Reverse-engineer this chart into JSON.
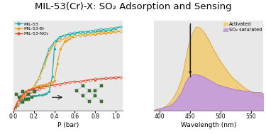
{
  "title": "MIL-53(Cr)-X: SO₂ Adsorption and Sensing",
  "title_fontsize": 9.5,
  "left_xlabel": "P (bar)",
  "right_xlabel": "Wavelength (nm)",
  "bg_color": "#eeeeee",
  "panel_bg": "#e8e8e8",
  "series": [
    {
      "label": "MIL-53",
      "color": "#1eada6",
      "adsorption_x": [
        0.0,
        0.02,
        0.04,
        0.06,
        0.08,
        0.1,
        0.12,
        0.15,
        0.18,
        0.2,
        0.22,
        0.25,
        0.28,
        0.3,
        0.32,
        0.35,
        0.38,
        0.4,
        0.42,
        0.45,
        0.5,
        0.55,
        0.6,
        0.65,
        0.7,
        0.75,
        0.8,
        0.85,
        0.9,
        0.95,
        1.0,
        1.05
      ],
      "adsorption_y": [
        0.0,
        0.03,
        0.06,
        0.09,
        0.11,
        0.13,
        0.14,
        0.15,
        0.16,
        0.17,
        0.17,
        0.18,
        0.18,
        0.19,
        0.2,
        0.22,
        0.4,
        0.72,
        0.82,
        0.86,
        0.88,
        0.89,
        0.9,
        0.91,
        0.91,
        0.92,
        0.92,
        0.93,
        0.93,
        0.94,
        0.96,
        0.98
      ],
      "desorption_x": [
        1.05,
        1.0,
        0.95,
        0.9,
        0.85,
        0.8,
        0.75,
        0.7,
        0.65,
        0.6,
        0.55,
        0.5,
        0.45,
        0.4,
        0.35,
        0.3,
        0.25,
        0.2,
        0.15,
        0.1,
        0.05,
        0.0
      ],
      "desorption_y": [
        0.98,
        0.97,
        0.96,
        0.95,
        0.95,
        0.94,
        0.93,
        0.92,
        0.92,
        0.91,
        0.9,
        0.88,
        0.85,
        0.8,
        0.72,
        0.55,
        0.38,
        0.27,
        0.2,
        0.15,
        0.08,
        0.0
      ]
    },
    {
      "label": "MIL-53-Br",
      "color": "#e8a020",
      "adsorption_x": [
        0.0,
        0.02,
        0.04,
        0.06,
        0.08,
        0.1,
        0.12,
        0.15,
        0.18,
        0.2,
        0.22,
        0.25,
        0.28,
        0.3,
        0.32,
        0.35,
        0.38,
        0.4,
        0.43,
        0.46,
        0.5,
        0.52,
        0.55,
        0.58,
        0.6,
        0.65,
        0.7,
        0.75,
        0.8,
        0.85,
        0.9,
        0.95,
        1.0,
        1.05
      ],
      "adsorption_y": [
        0.0,
        0.04,
        0.08,
        0.12,
        0.16,
        0.19,
        0.22,
        0.24,
        0.26,
        0.27,
        0.28,
        0.29,
        0.3,
        0.3,
        0.31,
        0.32,
        0.33,
        0.35,
        0.55,
        0.72,
        0.8,
        0.82,
        0.84,
        0.86,
        0.87,
        0.88,
        0.88,
        0.89,
        0.89,
        0.9,
        0.9,
        0.91,
        0.92,
        0.93
      ],
      "desorption_x": [
        1.05,
        1.0,
        0.95,
        0.9,
        0.85,
        0.8,
        0.75,
        0.7,
        0.65,
        0.6,
        0.55,
        0.5,
        0.45,
        0.4,
        0.35,
        0.3,
        0.25,
        0.2,
        0.15,
        0.1,
        0.05,
        0.0
      ],
      "desorption_y": [
        0.93,
        0.93,
        0.92,
        0.91,
        0.91,
        0.9,
        0.89,
        0.89,
        0.88,
        0.87,
        0.86,
        0.84,
        0.82,
        0.78,
        0.68,
        0.52,
        0.38,
        0.28,
        0.22,
        0.16,
        0.08,
        0.0
      ]
    },
    {
      "label": "MIL-53-NO₂",
      "color": "#e05030",
      "adsorption_x": [
        0.0,
        0.02,
        0.04,
        0.06,
        0.08,
        0.1,
        0.12,
        0.15,
        0.18,
        0.2,
        0.25,
        0.3,
        0.35,
        0.4,
        0.45,
        0.5,
        0.55,
        0.6,
        0.65,
        0.7,
        0.75,
        0.8,
        0.85,
        0.9,
        0.95,
        1.0,
        1.05
      ],
      "adsorption_y": [
        0.0,
        0.05,
        0.1,
        0.14,
        0.17,
        0.2,
        0.22,
        0.24,
        0.25,
        0.26,
        0.27,
        0.28,
        0.29,
        0.3,
        0.31,
        0.32,
        0.33,
        0.34,
        0.34,
        0.35,
        0.36,
        0.36,
        0.37,
        0.37,
        0.38,
        0.38,
        0.39
      ],
      "desorption_x": [
        1.05,
        1.0,
        0.95,
        0.9,
        0.85,
        0.8,
        0.75,
        0.7,
        0.65,
        0.6,
        0.55,
        0.5,
        0.45,
        0.4,
        0.35,
        0.3,
        0.25,
        0.2,
        0.15,
        0.1,
        0.05,
        0.0
      ],
      "desorption_y": [
        0.39,
        0.39,
        0.38,
        0.38,
        0.37,
        0.37,
        0.36,
        0.35,
        0.34,
        0.34,
        0.33,
        0.32,
        0.31,
        0.3,
        0.29,
        0.27,
        0.25,
        0.22,
        0.19,
        0.15,
        0.1,
        0.0
      ]
    }
  ],
  "xlim_left": [
    0.0,
    1.07
  ],
  "ylim_left": [
    0.0,
    1.05
  ],
  "xticks_left": [
    0.0,
    0.2,
    0.4,
    0.6,
    0.8,
    1.0
  ],
  "wavelength_x": [
    390,
    395,
    400,
    405,
    410,
    415,
    420,
    425,
    430,
    435,
    438,
    440,
    442,
    445,
    447,
    450,
    453,
    455,
    458,
    460,
    465,
    470,
    475,
    480,
    485,
    490,
    495,
    500,
    505,
    510,
    515,
    520,
    525,
    530,
    535,
    540,
    545,
    550,
    555,
    560,
    565,
    570
  ],
  "activated_y": [
    0.0,
    0.01,
    0.02,
    0.03,
    0.05,
    0.08,
    0.12,
    0.18,
    0.25,
    0.35,
    0.43,
    0.5,
    0.58,
    0.68,
    0.76,
    0.82,
    0.88,
    0.92,
    0.96,
    0.98,
    0.97,
    0.94,
    0.89,
    0.83,
    0.76,
    0.69,
    0.63,
    0.57,
    0.52,
    0.47,
    0.42,
    0.38,
    0.35,
    0.32,
    0.29,
    0.26,
    0.24,
    0.22,
    0.2,
    0.18,
    0.17,
    0.16
  ],
  "so2sat_y": [
    0.0,
    0.01,
    0.02,
    0.03,
    0.04,
    0.05,
    0.07,
    0.1,
    0.15,
    0.2,
    0.25,
    0.28,
    0.32,
    0.36,
    0.38,
    0.4,
    0.41,
    0.42,
    0.42,
    0.42,
    0.41,
    0.4,
    0.38,
    0.36,
    0.34,
    0.32,
    0.3,
    0.29,
    0.28,
    0.27,
    0.26,
    0.25,
    0.24,
    0.24,
    0.23,
    0.23,
    0.22,
    0.22,
    0.21,
    0.21,
    0.21,
    0.2
  ],
  "activated_color": "#f0d080",
  "so2sat_color": "#c8a0d8",
  "activated_label": "Activated",
  "so2sat_label": "SO₂ saturated",
  "xlim_right": [
    390,
    570
  ],
  "ylim_right": [
    0.0,
    1.05
  ],
  "xticks_right": [
    400,
    450,
    500,
    550
  ],
  "vline_x": 450,
  "vline_color": "#222222",
  "node_color": "#3a7a30",
  "node_edge_color": "#1a4a10"
}
